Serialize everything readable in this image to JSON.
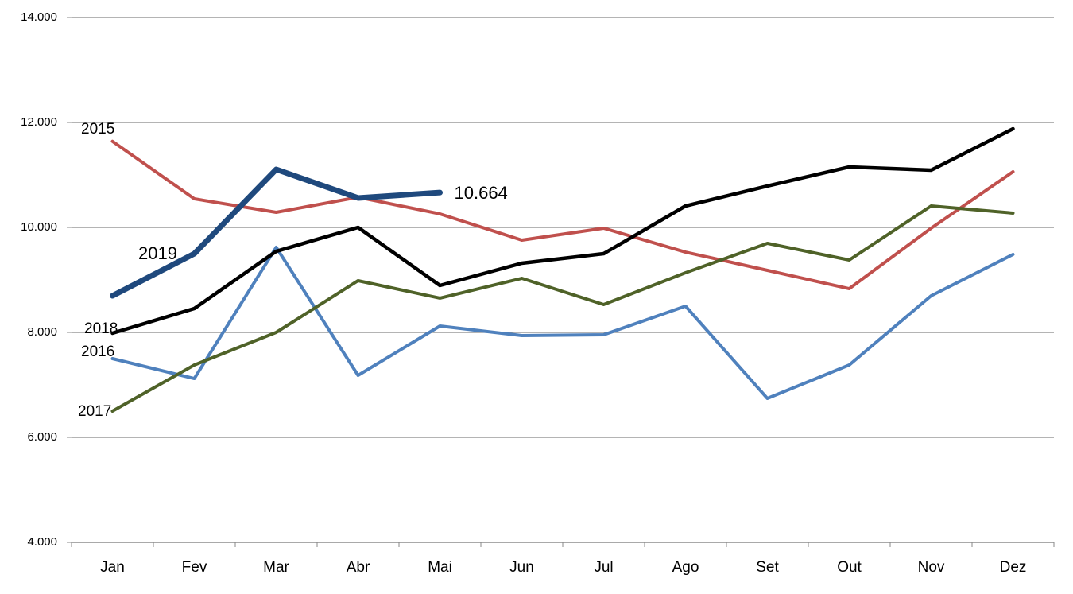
{
  "chart_data": {
    "type": "line",
    "categories": [
      "Jan",
      "Fev",
      "Mar",
      "Abr",
      "Mai",
      "Jun",
      "Jul",
      "Ago",
      "Set",
      "Out",
      "Nov",
      "Dez"
    ],
    "series": [
      {
        "name": "2015",
        "color": "#c0504d",
        "values": [
          11640,
          10545,
          10288,
          10576,
          10258,
          9758,
          9985,
          9530,
          9182,
          8833,
          9985,
          11061
        ]
      },
      {
        "name": "2016",
        "color": "#4f81bd",
        "values": [
          7500,
          7121,
          9621,
          7182,
          8121,
          7939,
          7955,
          8500,
          6742,
          7379,
          8697,
          9485
        ]
      },
      {
        "name": "2017",
        "color": "#4f6228",
        "values": [
          6500,
          7379,
          8000,
          8985,
          8652,
          9030,
          8530,
          9136,
          9697,
          9379,
          10409,
          10273
        ]
      },
      {
        "name": "2018",
        "color": "#000000",
        "values": [
          7985,
          8455,
          9545,
          10000,
          8894,
          9318,
          9500,
          10409,
          10788,
          11152,
          11091,
          11879
        ]
      },
      {
        "name": "2019",
        "color": "#1f497d",
        "values": [
          8697,
          9500,
          11106,
          10561,
          10664,
          null,
          null,
          null,
          null,
          null,
          null,
          null
        ],
        "value_labels": [
          null,
          null,
          null,
          null,
          "10.664",
          null,
          null,
          null,
          null,
          null,
          null,
          null
        ]
      }
    ],
    "ylim": [
      4000,
      14000
    ],
    "yticks": [
      {
        "value": 4000,
        "label": "4.000"
      },
      {
        "value": 6000,
        "label": "6.000"
      },
      {
        "value": 8000,
        "label": "8.000"
      },
      {
        "value": 10000,
        "label": "10.000"
      },
      {
        "value": 12000,
        "label": "12.000"
      },
      {
        "value": 14000,
        "label": "14.000"
      }
    ],
    "grid": true
  }
}
